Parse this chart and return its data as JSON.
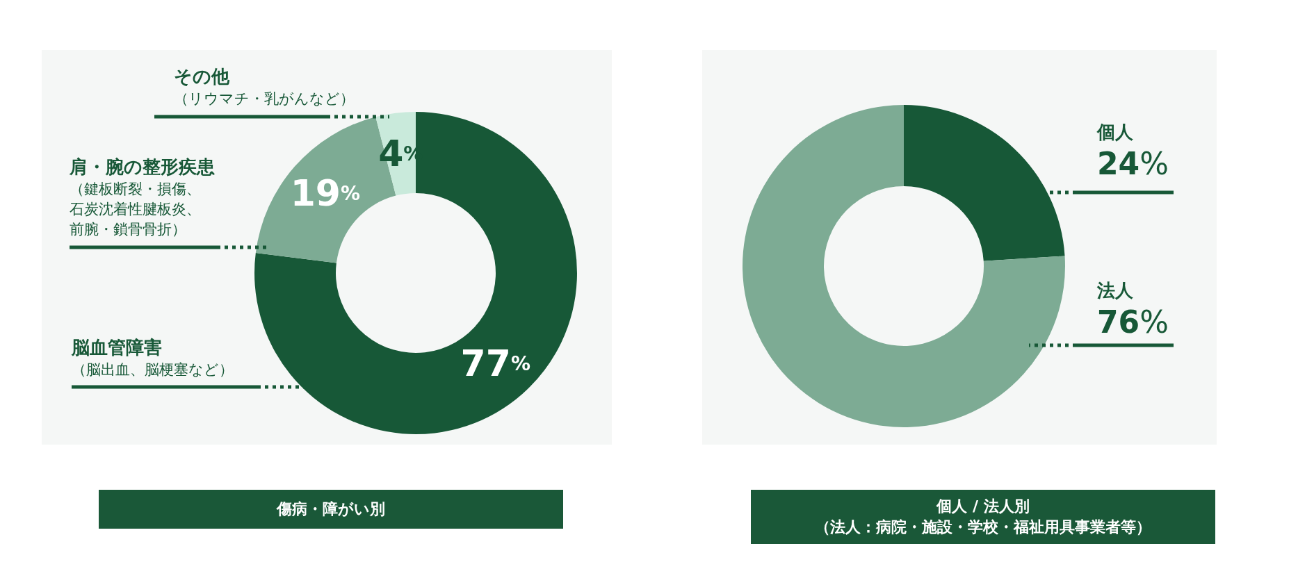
{
  "chart_data": [
    {
      "type": "donut",
      "title": "傷病・障がい別",
      "categories": [
        "脳血管障害（脳出血、脳梗塞など）",
        "肩・腕の整形疾患（鍵板断裂・損傷、石炭沈着性腱板炎、前腕・鎖骨骨折）",
        "その他（リウマチ・乳がんなど）"
      ],
      "values": [
        77,
        19,
        4
      ],
      "colors": [
        "#175837",
        "#7dab94",
        "#c9eadb"
      ],
      "value_labels": [
        "77%",
        "19%",
        "4%"
      ]
    },
    {
      "type": "donut",
      "title": "個人 / 法人別",
      "subtitle": "（法人：病院・施設・学校・福祉用具事業者等）",
      "categories": [
        "個人",
        "法人"
      ],
      "values": [
        24,
        76
      ],
      "colors": [
        "#175837",
        "#7dab94"
      ],
      "value_labels": [
        "24%",
        "76%"
      ]
    }
  ]
}
